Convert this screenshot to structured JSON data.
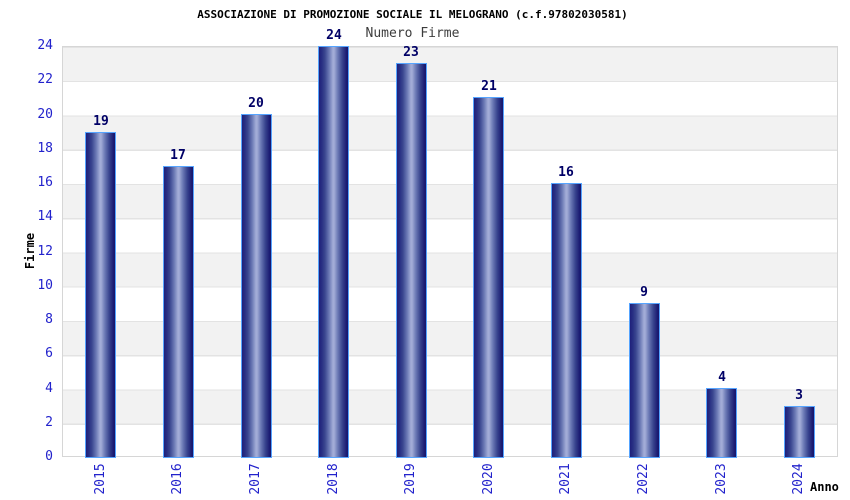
{
  "chart_data": {
    "type": "bar",
    "title": "ASSOCIAZIONE DI PROMOZIONE SOCIALE IL MELOGRANO (c.f.97802030581)",
    "subtitle": "Numero Firme",
    "xlabel": "Anno",
    "ylabel": "Firme",
    "categories": [
      "2015",
      "2016",
      "2017",
      "2018",
      "2019",
      "2020",
      "2021",
      "2022",
      "2023",
      "2024"
    ],
    "values": [
      19,
      17,
      20,
      24,
      23,
      21,
      16,
      9,
      4,
      3
    ],
    "ylim": [
      0,
      24
    ],
    "ytick_step": 2,
    "grid": "horizontal-bands",
    "legend": "none",
    "colors": {
      "bar_dark": "#1b1b72",
      "bar_light": "#a2acd7",
      "bar_border": "#55a4ff",
      "tick_label": "#2222cc",
      "value_label": "#000066",
      "title_text": "#000000",
      "subtitle_text": "#3c3c3c",
      "band_gray": "#f2f2f2",
      "band_white": "#ffffff",
      "grid_line": "#e3e3e3"
    }
  }
}
